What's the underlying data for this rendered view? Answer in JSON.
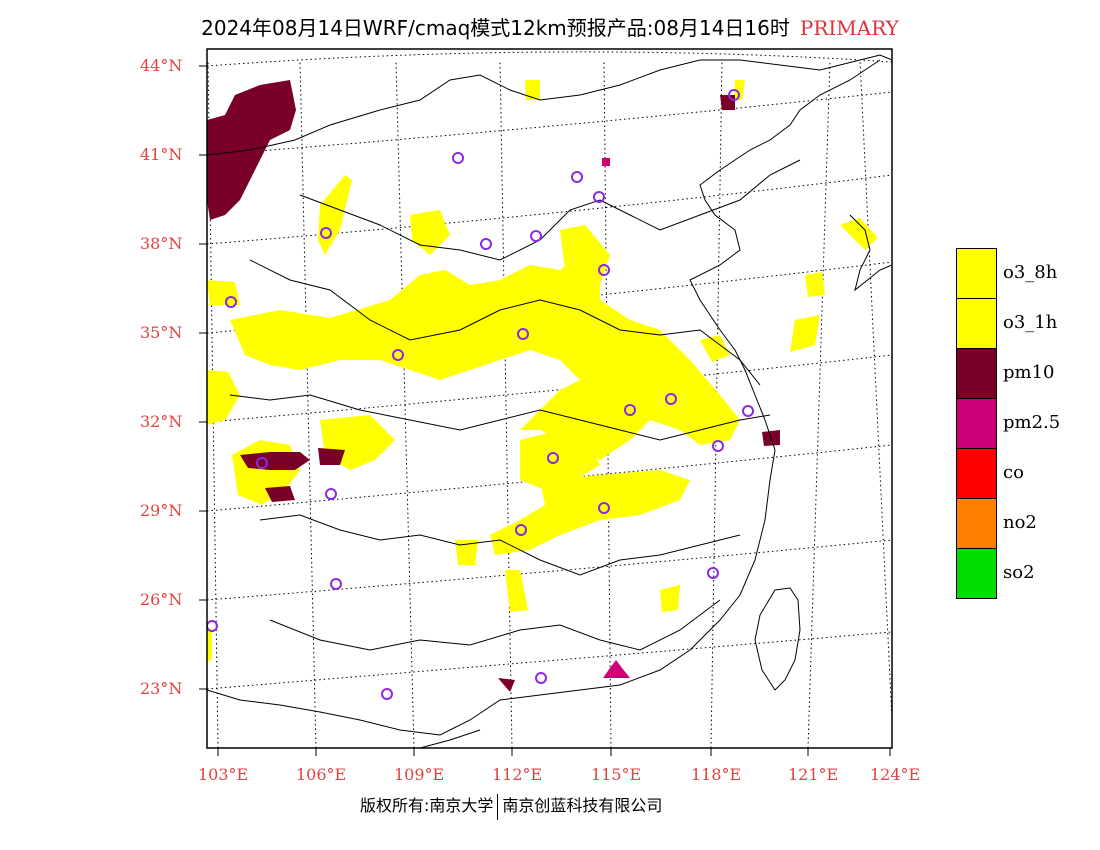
{
  "title": {
    "main": "2024年08月14日WRF/cmaq模式12km预报产品:08月14日16时",
    "tag": "PRIMARY"
  },
  "colors": {
    "label_red": "#e34040",
    "o3_8h": "#ffff00",
    "o3_1h": "#ffff00",
    "pm10": "#7a0028",
    "pm25": "#cc0077",
    "co": "#ff0000",
    "no2": "#ff8000",
    "so2": "#00dd00",
    "station_ring": "#8a2be2"
  },
  "lat_labels": [
    "44°N",
    "41°N",
    "38°N",
    "35°N",
    "32°N",
    "29°N",
    "26°N",
    "23°N"
  ],
  "lon_labels": [
    "103°E",
    "106°E",
    "109°E",
    "112°E",
    "115°E",
    "118°E",
    "121°E",
    "124°E"
  ],
  "legend": [
    {
      "label": "o3_8h",
      "color": "#ffff00"
    },
    {
      "label": "o3_1h",
      "color": "#ffff00"
    },
    {
      "label": "pm10",
      "color": "#7a0028"
    },
    {
      "label": "pm2.5",
      "color": "#cc0077"
    },
    {
      "label": "co",
      "color": "#ff0000"
    },
    {
      "label": "no2",
      "color": "#ff8000"
    },
    {
      "label": "so2",
      "color": "#00dd00"
    }
  ],
  "footer": {
    "left": "版权所有:南京大学",
    "right": "南京创蓝科技有限公司"
  }
}
